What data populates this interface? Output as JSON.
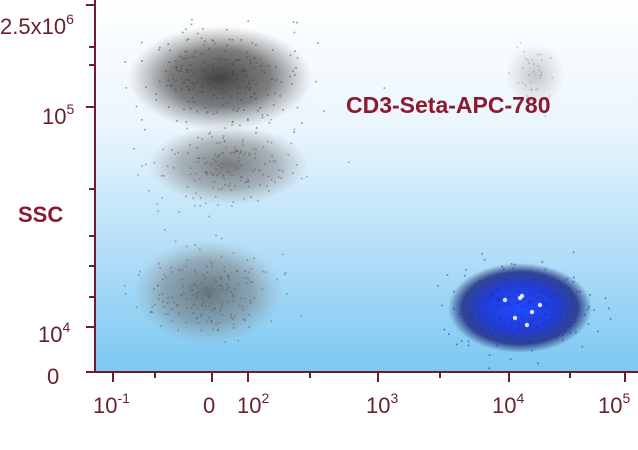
{
  "chart_data": {
    "type": "scatter",
    "title": "",
    "xlabel": "",
    "ylabel": "SSC",
    "annotation": "CD3-Seta-APC-780",
    "x_ticks": [
      {
        "base": "10",
        "exp": "-1"
      },
      {
        "base": "0",
        "exp": ""
      },
      {
        "base": "10",
        "exp": "2"
      },
      {
        "base": "10",
        "exp": "3"
      },
      {
        "base": "10",
        "exp": "4"
      },
      {
        "base": "10",
        "exp": "5"
      }
    ],
    "y_ticks": [
      {
        "base": "0",
        "exp": ""
      },
      {
        "base": "10",
        "exp": "4"
      },
      {
        "base": "10",
        "exp": "5"
      },
      {
        "base": "2.5x10",
        "exp": "6"
      }
    ],
    "populations": [
      {
        "label": "",
        "color": "#555555",
        "x_center": "0",
        "y_center": "1.5x10^5",
        "density": "high"
      },
      {
        "label": "",
        "color": "#666666",
        "x_center": "0",
        "y_center": "4x10^4",
        "density": "medium"
      },
      {
        "label": "",
        "color": "#666666",
        "x_center": "0",
        "y_center": "1.2x10^4",
        "density": "medium"
      },
      {
        "label": "",
        "color": "#1a2fd6",
        "x_center": "10^4",
        "y_center": "1.1x10^4",
        "density": "high"
      },
      {
        "label": "",
        "color": "#888888",
        "x_center": "3x10^4",
        "y_center": "1.6x10^5",
        "density": "low"
      }
    ],
    "background_gradient": [
      "#ffffff",
      "#7cc8f2"
    ],
    "accent_color": "#8c1a2e"
  }
}
